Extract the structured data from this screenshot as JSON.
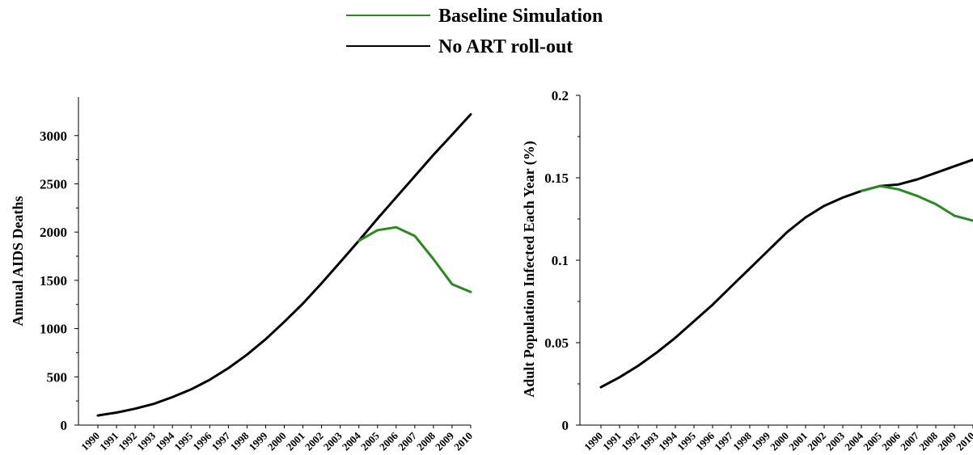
{
  "legend": {
    "items": [
      {
        "label": "Baseline Simulation",
        "color": "#2a8a1f"
      },
      {
        "label": "No ART roll-out",
        "color": "#000000"
      }
    ],
    "placement": "top-center"
  },
  "chart_data": [
    {
      "type": "line",
      "ylabel": "Annual AIDS Deaths",
      "xlabel": "",
      "x": [
        "1990",
        "1991",
        "1992",
        "1993",
        "1994",
        "1995",
        "1996",
        "1997",
        "1998",
        "1999",
        "2000",
        "2001",
        "2002",
        "2003",
        "2004",
        "2005",
        "2006",
        "2007",
        "2008",
        "2009",
        "2010"
      ],
      "yticks": [
        "0",
        "500",
        "1000",
        "1500",
        "2000",
        "2500",
        "3000"
      ],
      "ylim": [
        0,
        3400
      ],
      "grid": false,
      "series": [
        {
          "name": "No ART roll-out",
          "color": "#000000",
          "x": [
            "1990",
            "1991",
            "1992",
            "1993",
            "1994",
            "1995",
            "1996",
            "1997",
            "1998",
            "1999",
            "2000",
            "2001",
            "2002",
            "2003",
            "2004",
            "2005",
            "2006",
            "2007",
            "2008",
            "2009",
            "2010"
          ],
          "values": [
            100,
            130,
            170,
            220,
            290,
            370,
            470,
            590,
            730,
            890,
            1070,
            1260,
            1470,
            1690,
            1910,
            2140,
            2360,
            2580,
            2800,
            3010,
            3220
          ]
        },
        {
          "name": "Baseline Simulation",
          "color": "#2a8a1f",
          "x": [
            "2004",
            "2005",
            "2006",
            "2007",
            "2008",
            "2009",
            "2010"
          ],
          "values": [
            1910,
            2020,
            2050,
            1960,
            1720,
            1460,
            1380
          ]
        }
      ]
    },
    {
      "type": "line",
      "ylabel": "Adult Population Infected Each Year (%)",
      "xlabel": "",
      "x": [
        "1990",
        "1991",
        "1992",
        "1993",
        "1994",
        "1995",
        "1996",
        "1997",
        "1998",
        "1999",
        "2000",
        "2001",
        "2002",
        "2003",
        "2004",
        "2005",
        "2006",
        "2007",
        "2008",
        "2009",
        "2010"
      ],
      "yticks": [
        "0",
        "0.05",
        "0.1",
        "0.15",
        "0.2"
      ],
      "ylim": [
        0,
        0.2
      ],
      "grid": false,
      "series": [
        {
          "name": "No ART roll-out",
          "color": "#000000",
          "x": [
            "1990",
            "1991",
            "1992",
            "1993",
            "1994",
            "1995",
            "1996",
            "1997",
            "1998",
            "1999",
            "2000",
            "2001",
            "2002",
            "2003",
            "2004",
            "2005",
            "2006",
            "2007",
            "2008",
            "2009",
            "2010"
          ],
          "values": [
            0.023,
            0.029,
            0.036,
            0.044,
            0.053,
            0.063,
            0.073,
            0.084,
            0.095,
            0.106,
            0.117,
            0.126,
            0.133,
            0.138,
            0.142,
            0.145,
            0.146,
            0.149,
            0.153,
            0.157,
            0.161
          ]
        },
        {
          "name": "Baseline Simulation",
          "color": "#2a8a1f",
          "x": [
            "2004",
            "2005",
            "2006",
            "2007",
            "2008",
            "2009",
            "2010"
          ],
          "values": [
            0.142,
            0.145,
            0.143,
            0.139,
            0.134,
            0.127,
            0.124
          ]
        }
      ]
    }
  ]
}
